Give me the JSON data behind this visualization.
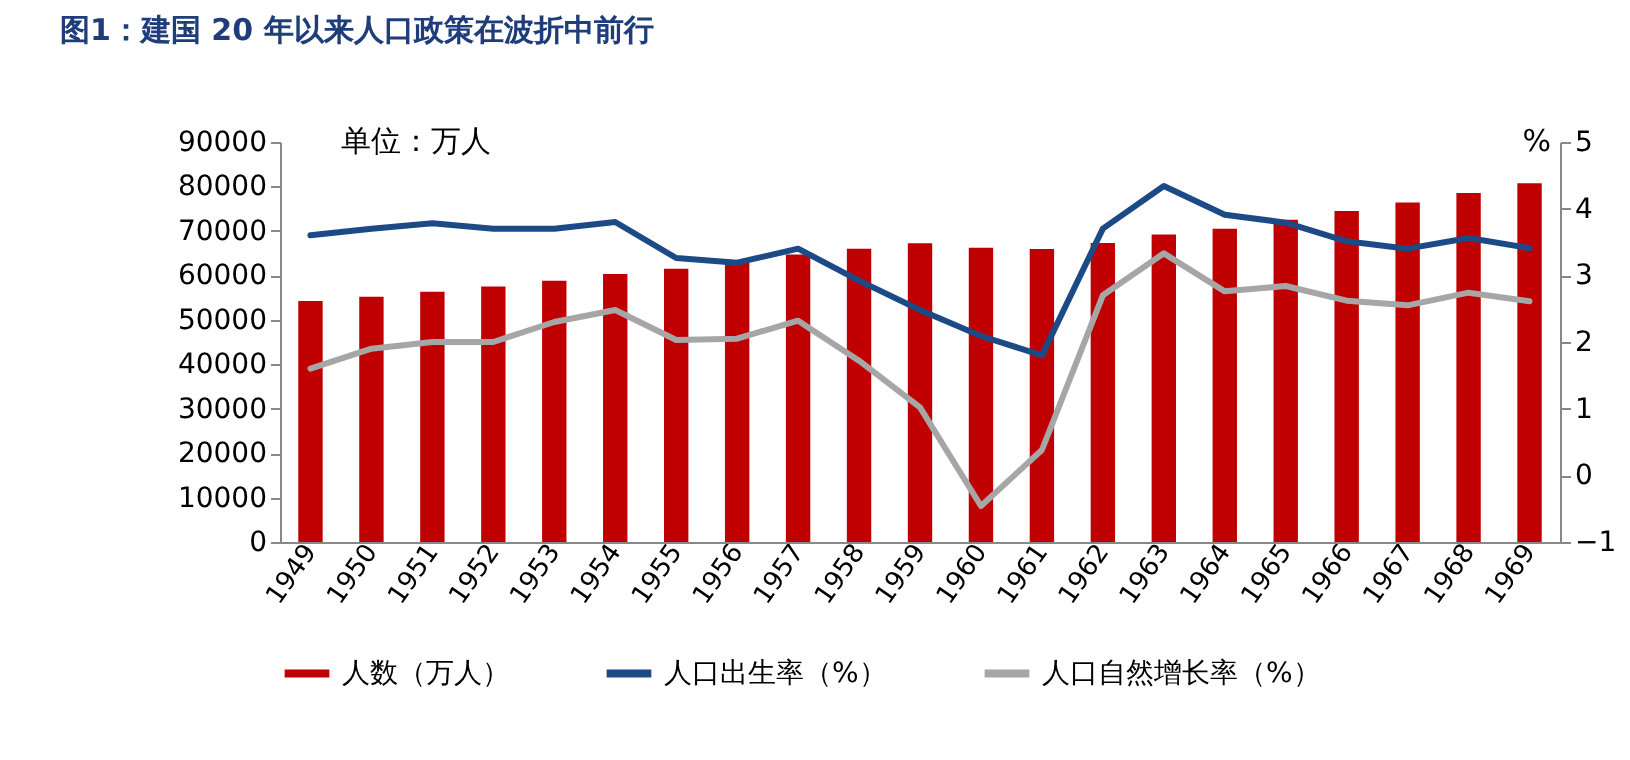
{
  "chart_data": {
    "type": "bar",
    "title": "图1：建国 20 年以来人口政策在波折中前行",
    "categories": [
      "1949",
      "1950",
      "1951",
      "1952",
      "1953",
      "1954",
      "1955",
      "1956",
      "1957",
      "1958",
      "1959",
      "1960",
      "1961",
      "1962",
      "1963",
      "1964",
      "1965",
      "1966",
      "1967",
      "1968",
      "1969"
    ],
    "series": [
      {
        "name": "人数（万人）",
        "color": "#c00000",
        "values": [
          54200,
          55200,
          56300,
          57500,
          58800,
          60300,
          61500,
          62800,
          64700,
          66000,
          67200,
          66200,
          65900,
          67300,
          69200,
          70500,
          72500,
          74500,
          76400,
          78500,
          80700
        ]
      },
      {
        "name": "人口出生率（%）",
        "type": "line",
        "axis": "y2",
        "color": "#1b4a86",
        "values": [
          3.6,
          3.7,
          3.78,
          3.7,
          3.7,
          3.8,
          3.26,
          3.19,
          3.4,
          2.92,
          2.48,
          2.09,
          1.8,
          3.7,
          4.34,
          3.91,
          3.79,
          3.51,
          3.4,
          3.56,
          3.41
        ]
      },
      {
        "name": "人口自然增长率（%）",
        "type": "line",
        "axis": "y2",
        "color": "#a6a6a6",
        "values": [
          1.6,
          1.9,
          2.0,
          2.0,
          2.3,
          2.48,
          2.03,
          2.05,
          2.32,
          1.72,
          1.02,
          -0.46,
          0.38,
          2.7,
          3.33,
          2.76,
          2.84,
          2.62,
          2.55,
          2.74,
          2.61
        ]
      }
    ],
    "ylim": [
      0,
      90000
    ],
    "yticks": [
      0,
      10000,
      20000,
      30000,
      40000,
      50000,
      60000,
      70000,
      80000,
      90000
    ],
    "y2lim": [
      -1,
      5
    ],
    "y2ticks": [
      -1,
      0,
      1,
      2,
      3,
      4,
      5
    ],
    "y2label": "%",
    "annotations": [
      "单位：万人"
    ],
    "grid": false,
    "legend": "bottom"
  }
}
